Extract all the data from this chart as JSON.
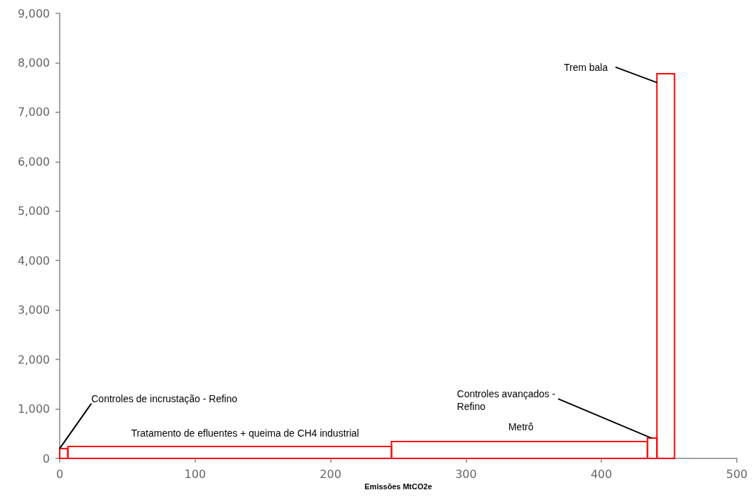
{
  "chart_data": {
    "type": "histogram",
    "xlabel": "Emissões MtCO2e",
    "bins": [
      0,
      6,
      245,
      434,
      441,
      454
    ],
    "values": [
      200,
      240,
      340,
      410,
      7780
    ],
    "color": "#ff0000",
    "xlim": [
      0,
      500
    ],
    "xticks": [
      0,
      100,
      200,
      300,
      400,
      500
    ],
    "ylim": [
      0,
      9000
    ],
    "yticks": [
      0,
      {
        "value": 1000,
        "label": "1,000"
      },
      {
        "value": 2000,
        "label": "2,000"
      },
      {
        "value": 3000,
        "label": "3,000"
      },
      {
        "value": 4000,
        "label": "4,000"
      },
      {
        "value": 5000,
        "label": "5,000"
      },
      {
        "value": 6000,
        "label": "6,000"
      },
      {
        "value": 7000,
        "label": "7,000"
      },
      {
        "value": 8000,
        "label": "8,000"
      },
      {
        "value": 9000,
        "label": "9,000"
      }
    ],
    "grid": false,
    "annotations": [
      {
        "text": "Controles de incrustação - Refino",
        "x": 0,
        "y": 200
      },
      {
        "text": "Tratamento de efluentes + queima de CH4 industrial",
        "x": 125,
        "y": 240
      },
      {
        "text": "Metrô",
        "x": 339,
        "y": 340
      },
      {
        "text": "Controles avançados -\nRefino",
        "x": 437,
        "y": 410
      },
      {
        "text": "Trem bala",
        "x": 441,
        "y": 7600
      }
    ]
  }
}
